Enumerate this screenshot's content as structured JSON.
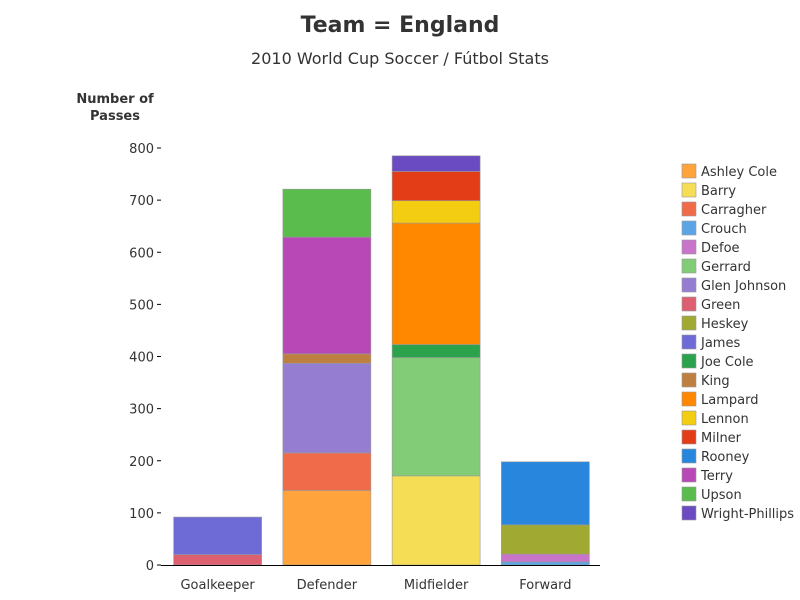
{
  "chart_data": {
    "type": "bar",
    "stacked": true,
    "title": "Team = England",
    "subtitle": "2010 World Cup Soccer / Fútbol Stats",
    "ylabel": "Number of Passes",
    "ylabel_lines": [
      "Number of",
      "Passes"
    ],
    "xlabel": "",
    "ylim": [
      0,
      800
    ],
    "yticks": [
      0,
      100,
      200,
      300,
      400,
      500,
      600,
      700,
      800
    ],
    "ytick_labels": [
      "0",
      "100",
      "200",
      "300",
      "400",
      "500",
      "600",
      "700",
      "800"
    ],
    "grid": false,
    "legend_position": "right",
    "categories": [
      "Goalkeeper",
      "Defender",
      "Midfielder",
      "Forward"
    ],
    "series": [
      {
        "name": "Ashley Cole",
        "color": "#FFA33D",
        "values": [
          0,
          143,
          0,
          0
        ]
      },
      {
        "name": "Barry",
        "color": "#F5DE55",
        "values": [
          0,
          0,
          171,
          0
        ]
      },
      {
        "name": "Carragher",
        "color": "#EF6B49",
        "values": [
          0,
          72,
          0,
          0
        ]
      },
      {
        "name": "Crouch",
        "color": "#5BA5E6",
        "values": [
          0,
          0,
          0,
          6
        ]
      },
      {
        "name": "Defoe",
        "color": "#C874C8",
        "values": [
          0,
          0,
          0,
          15
        ]
      },
      {
        "name": "Gerrard",
        "color": "#82CC78",
        "values": [
          0,
          0,
          227,
          0
        ]
      },
      {
        "name": "Glen Johnson",
        "color": "#957ED1",
        "values": [
          0,
          172,
          0,
          0
        ]
      },
      {
        "name": "Green",
        "color": "#DD6070",
        "values": [
          20,
          0,
          0,
          0
        ]
      },
      {
        "name": "Heskey",
        "color": "#A0AA32",
        "values": [
          0,
          0,
          0,
          56
        ]
      },
      {
        "name": "James",
        "color": "#6E6BD6",
        "values": [
          72,
          0,
          0,
          0
        ]
      },
      {
        "name": "Joe Cole",
        "color": "#2BA24B",
        "values": [
          0,
          0,
          25,
          0
        ]
      },
      {
        "name": "King",
        "color": "#BE8041",
        "values": [
          0,
          18,
          0,
          0
        ]
      },
      {
        "name": "Lampard",
        "color": "#FF8800",
        "values": [
          0,
          0,
          233,
          0
        ]
      },
      {
        "name": "Lennon",
        "color": "#F2CD12",
        "values": [
          0,
          0,
          43,
          0
        ]
      },
      {
        "name": "Milner",
        "color": "#E33D18",
        "values": [
          0,
          0,
          56,
          0
        ]
      },
      {
        "name": "Rooney",
        "color": "#2887DD",
        "values": [
          0,
          0,
          0,
          121
        ]
      },
      {
        "name": "Terry",
        "color": "#B748B5",
        "values": [
          0,
          224,
          0,
          0
        ]
      },
      {
        "name": "Upson",
        "color": "#5ABC4C",
        "values": [
          0,
          92,
          0,
          0
        ]
      },
      {
        "name": "Wright-Phillips",
        "color": "#6B4BC2",
        "values": [
          0,
          0,
          30,
          0
        ]
      }
    ]
  },
  "colors": {
    "text": "#333333",
    "axis": "#000000",
    "bar_outline": "#9a9a9a"
  }
}
